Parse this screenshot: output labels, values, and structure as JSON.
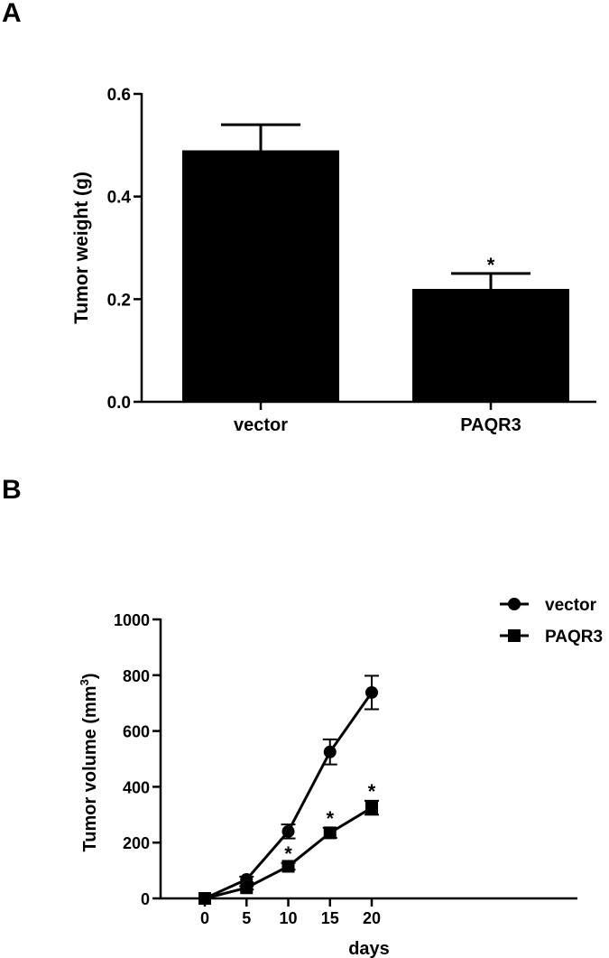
{
  "panels": {
    "a_label": "A",
    "b_label": "B"
  },
  "chart_data": [
    {
      "type": "bar",
      "panel": "A",
      "categories": [
        "vector",
        "PAQR3"
      ],
      "values": [
        0.49,
        0.22
      ],
      "errors": [
        0.05,
        0.03
      ],
      "significance": [
        "",
        "*"
      ],
      "ylabel": "Tumor weight (g)",
      "xlabel": "",
      "ylim": [
        0,
        0.6
      ],
      "yticks": [
        "0.0",
        "0.2",
        "0.4",
        "0.6"
      ],
      "bar_color": "#000000",
      "grid": false
    },
    {
      "type": "line",
      "panel": "B",
      "x": [
        0,
        5,
        10,
        15,
        20
      ],
      "xticks": [
        "0",
        "5",
        "10",
        "15",
        "20"
      ],
      "xlabel": "days",
      "ylabel_main": "Tumor volume (mm",
      "ylabel_sup": "3",
      "ylabel_close": ")",
      "ylim": [
        0,
        1000
      ],
      "yticks": [
        "0",
        "200",
        "400",
        "600",
        "800",
        "1000"
      ],
      "legend_position": "top-right",
      "grid": false,
      "series": [
        {
          "name": "vector",
          "marker": "circle",
          "values": [
            0,
            68,
            240,
            525,
            738
          ],
          "errors": [
            0,
            10,
            25,
            45,
            60
          ],
          "significance": [
            "",
            "",
            "",
            "",
            ""
          ]
        },
        {
          "name": "PAQR3",
          "marker": "square",
          "values": [
            0,
            38,
            115,
            235,
            325
          ],
          "errors": [
            0,
            6,
            12,
            18,
            25
          ],
          "significance": [
            "",
            "",
            "*",
            "*",
            "*"
          ]
        }
      ]
    }
  ]
}
